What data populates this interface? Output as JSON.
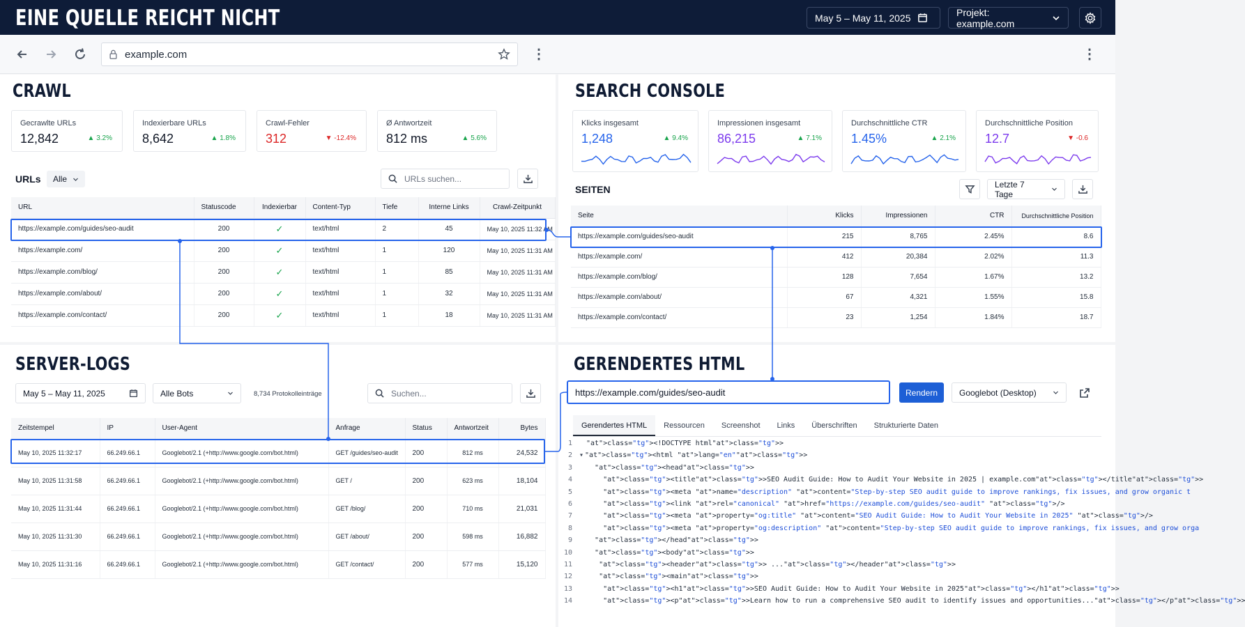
{
  "header": {
    "title": "EINE QUELLE REICHT NICHT",
    "date_range": "May 5 – May 11, 2025",
    "project": "Projekt: example.com"
  },
  "browser": {
    "url": "example.com"
  },
  "crawl": {
    "title": "CRAWL",
    "kpis": [
      {
        "label": "Gecrawlte URLs",
        "value": "12,842",
        "delta": "▲ 3.2%",
        "dir": "up"
      },
      {
        "label": "Indexierbare URLs",
        "value": "8,642",
        "delta": "▲ 1.8%",
        "dir": "up"
      },
      {
        "label": "Crawl-Fehler",
        "value": "312",
        "delta": "▼ -12.4%",
        "dir": "down"
      },
      {
        "label": "Ø Antwortzeit",
        "value": "812 ms",
        "delta": "▲ 5.6%",
        "dir": "up"
      }
    ],
    "urls_label": "URLs",
    "filter": "Alle",
    "search_placeholder": "URLs suchen...",
    "columns": [
      "URL",
      "Statuscode",
      "Indexierbar",
      "Content-Typ",
      "Tiefe",
      "Interne Links",
      "Crawl-Zeitpunkt"
    ],
    "rows": [
      [
        "https://example.com/guides/seo-audit",
        "200",
        "✓",
        "text/html",
        "2",
        "45",
        "May 10, 2025 11:32 AM"
      ],
      [
        "https://example.com/",
        "200",
        "✓",
        "text/html",
        "1",
        "120",
        "May 10, 2025 11:31 AM"
      ],
      [
        "https://example.com/blog/",
        "200",
        "✓",
        "text/html",
        "1",
        "85",
        "May 10, 2025 11:31 AM"
      ],
      [
        "https://example.com/about/",
        "200",
        "✓",
        "text/html",
        "1",
        "32",
        "May 10, 2025 11:31 AM"
      ],
      [
        "https://example.com/contact/",
        "200",
        "✓",
        "text/html",
        "1",
        "18",
        "May 10, 2025 11:31 AM"
      ]
    ]
  },
  "gsc": {
    "title": "SEARCH CONSOLE",
    "kpis": [
      {
        "label": "Klicks insgesamt",
        "value": "1,248",
        "delta": "▲ 9.4%",
        "dir": "up",
        "color": "#2563eb"
      },
      {
        "label": "Impressionen insgesamt",
        "value": "86,215",
        "delta": "▲ 7.1%",
        "dir": "up",
        "color": "#7c3aed"
      },
      {
        "label": "Durchschnittliche CTR",
        "value": "1.45%",
        "delta": "▲ 2.1%",
        "dir": "up",
        "color": "#2563eb"
      },
      {
        "label": "Durchschnittliche Position",
        "value": "12.7",
        "delta": "▼ -0.6",
        "dir": "down",
        "color": "#7c3aed"
      }
    ],
    "pages_label": "SEITEN",
    "range": "Letzte 7 Tage",
    "columns": [
      "Seite",
      "Klicks",
      "Impressionen",
      "CTR",
      "Durchschnittliche Position"
    ],
    "rows": [
      [
        "https://example.com/guides/seo-audit",
        "215",
        "8,765",
        "2.45%",
        "8.6"
      ],
      [
        "https://example.com/",
        "412",
        "20,384",
        "2.02%",
        "11.3"
      ],
      [
        "https://example.com/blog/",
        "128",
        "7,654",
        "1.67%",
        "13.2"
      ],
      [
        "https://example.com/about/",
        "67",
        "4,321",
        "1.55%",
        "15.8"
      ],
      [
        "https://example.com/contact/",
        "23",
        "1,254",
        "1.84%",
        "18.7"
      ]
    ]
  },
  "logs": {
    "title": "SERVER-LOGS",
    "date_range": "May 5 – May 11, 2025",
    "bots": "Alle Bots",
    "count": "8,734 Protokolleinträge",
    "search_placeholder": "Suchen...",
    "columns": [
      "Zeitstempel",
      "IP",
      "User-Agent",
      "Anfrage",
      "Status",
      "Antwortzeit",
      "Bytes"
    ],
    "rows": [
      [
        "May 10, 2025 11:32:17",
        "66.249.66.1",
        "Googlebot/2.1 (+http://www.google.com/bot.html)",
        "GET /guides/seo-audit",
        "200",
        "812 ms",
        "24,532"
      ],
      [
        "May 10, 2025 11:31:58",
        "66.249.66.1",
        "Googlebot/2.1 (+http://www.google.com/bot.html)",
        "GET /",
        "200",
        "623 ms",
        "18,104"
      ],
      [
        "May 10, 2025 11:31:44",
        "66.249.66.1",
        "Googlebot/2.1 (+http://www.google.com/bot.html)",
        "GET /blog/",
        "200",
        "710 ms",
        "21,031"
      ],
      [
        "May 10, 2025 11:31:30",
        "66.249.66.1",
        "Googlebot/2.1 (+http://www.google.com/bot.html)",
        "GET /about/",
        "200",
        "598 ms",
        "16,882"
      ],
      [
        "May 10, 2025 11:31:16",
        "66.249.66.1",
        "Googlebot/2.1 (+http://www.google.com/bot.html)",
        "GET /contact/",
        "200",
        "577 ms",
        "15,120"
      ]
    ]
  },
  "rendered": {
    "title": "GERENDERTES HTML",
    "url": "https://example.com/guides/seo-audit",
    "render_button": "Rendern",
    "agent": "Googlebot (Desktop)",
    "tabs": [
      "Gerendertes HTML",
      "Ressourcen",
      "Screenshot",
      "Links",
      "Überschriften",
      "Strukturierte Daten"
    ],
    "code": [
      "<!DOCTYPE html>",
      "<html lang=\"en\">",
      "  <head>",
      "    <title>SEO Audit Guide: How to Audit Your Website in 2025 | example.com</title>",
      "    <meta name=\"description\" content=\"Step-by-step SEO audit guide to improve rankings, fix issues, and grow organic t",
      "    <link rel=\"canonical\" href=\"https://example.com/guides/seo-audit\" />",
      "    <meta property=\"og:title\" content=\"SEO Audit Guide: How to Audit Your Website in 2025\" />",
      "    <meta property=\"og:description\" content=\"Step-by-step SEO audit guide to improve rankings, fix issues, and grow orga",
      "  </head>",
      "  <body>",
      "   <header> ...</header>",
      "   <main>",
      "    <h1>SEO Audit Guide: How to Audit Your Website in 2025</h1>",
      "    <p>Learn how to run a comprehensive SEO audit to identify issues and opportunities...</p>"
    ]
  },
  "colors": {
    "accent": "#2563eb",
    "navy": "#0e1c38",
    "up": "#16a34a",
    "down": "#dc2626"
  }
}
